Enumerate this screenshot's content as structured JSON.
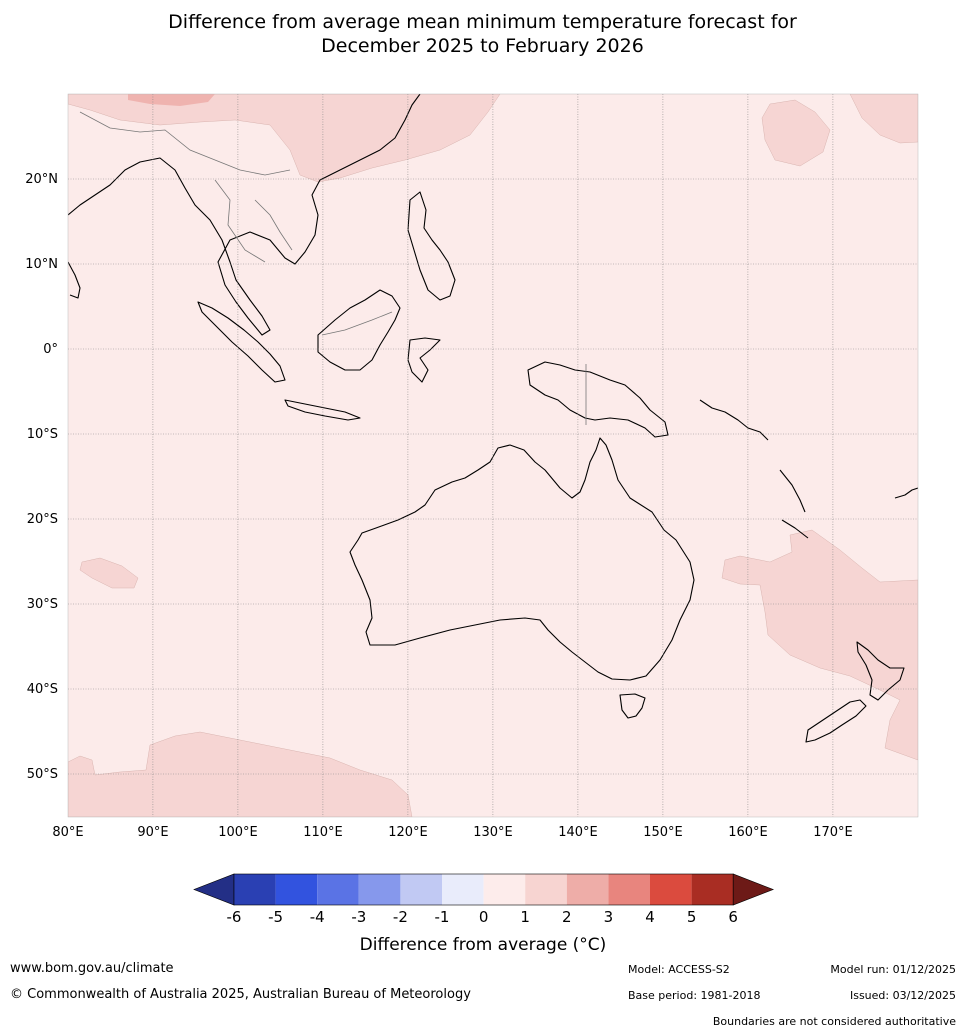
{
  "title": {
    "line1": "Difference from average mean minimum temperature forecast for",
    "line2": "December 2025 to February 2026"
  },
  "map": {
    "lat_range": [
      -55,
      30
    ],
    "lon_range": [
      80,
      180
    ],
    "lat_ticks": [
      "20°N",
      "10°N",
      "0°",
      "10°S",
      "20°S",
      "30°S",
      "40°S",
      "50°S"
    ],
    "lon_ticks": [
      "80°E",
      "90°E",
      "100°E",
      "110°E",
      "120°E",
      "130°E",
      "140°E",
      "150°E",
      "160°E",
      "170°E"
    ],
    "background_category": "0 to 1",
    "colors": {
      "0_to_1": "#fcebea",
      "1_to_2": "#f6d5d3",
      "2_to_3": "#edaaa6",
      "coast": "#000000",
      "borders": "#777777"
    }
  },
  "colorbar": {
    "label": "Difference from average (°C)",
    "ticks": [
      "-6",
      "-5",
      "-4",
      "-3",
      "-2",
      "-1",
      "0",
      "1",
      "2",
      "3",
      "4",
      "5",
      "6"
    ],
    "colors": [
      "#232f86",
      "#2a40b3",
      "#3253df",
      "#5a73e5",
      "#8698ec",
      "#c1c9f3",
      "#e9ecfb",
      "#fdeceb",
      "#f7d4d1",
      "#eeada8",
      "#e8857e",
      "#db4b3e",
      "#a92d23",
      "#6d1a17"
    ]
  },
  "footer": {
    "website": "www.bom.gov.au/climate",
    "copyright": "© Commonwealth of Australia 2025, Australian Bureau of Meteorology",
    "model": "Model: ACCESS-S2",
    "base_period": "Base period: 1981-2018",
    "model_run": "Model run: 01/12/2025",
    "issued": "Issued: 03/12/2025",
    "disclaimer": "Boundaries are not considered authoritative"
  }
}
